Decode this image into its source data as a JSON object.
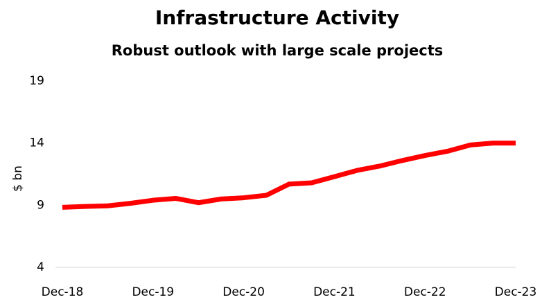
{
  "chart_data": {
    "type": "line",
    "title": "Infrastructure Activity",
    "subtitle": "Robust outlook with large scale projects",
    "y_label": "$ bn",
    "categories": [
      "Dec-18",
      null,
      null,
      null,
      "Dec-19",
      null,
      null,
      null,
      "Dec-20",
      null,
      null,
      null,
      "Dec-21",
      null,
      null,
      null,
      "Dec-22",
      null,
      null,
      null,
      "Dec-23"
    ],
    "series": [
      {
        "name": "Infrastructure Activity",
        "color": "#ff0000",
        "values": [
          8.83,
          8.9,
          8.95,
          9.15,
          9.4,
          9.55,
          9.2,
          9.5,
          9.6,
          9.8,
          10.7,
          10.8,
          11.3,
          11.8,
          12.15,
          12.6,
          13.0,
          13.35,
          13.85,
          14.0,
          14.0
        ]
      }
    ],
    "ylim": [
      4,
      19
    ],
    "yticks": [
      4,
      9,
      14,
      19
    ],
    "grid": false
  }
}
